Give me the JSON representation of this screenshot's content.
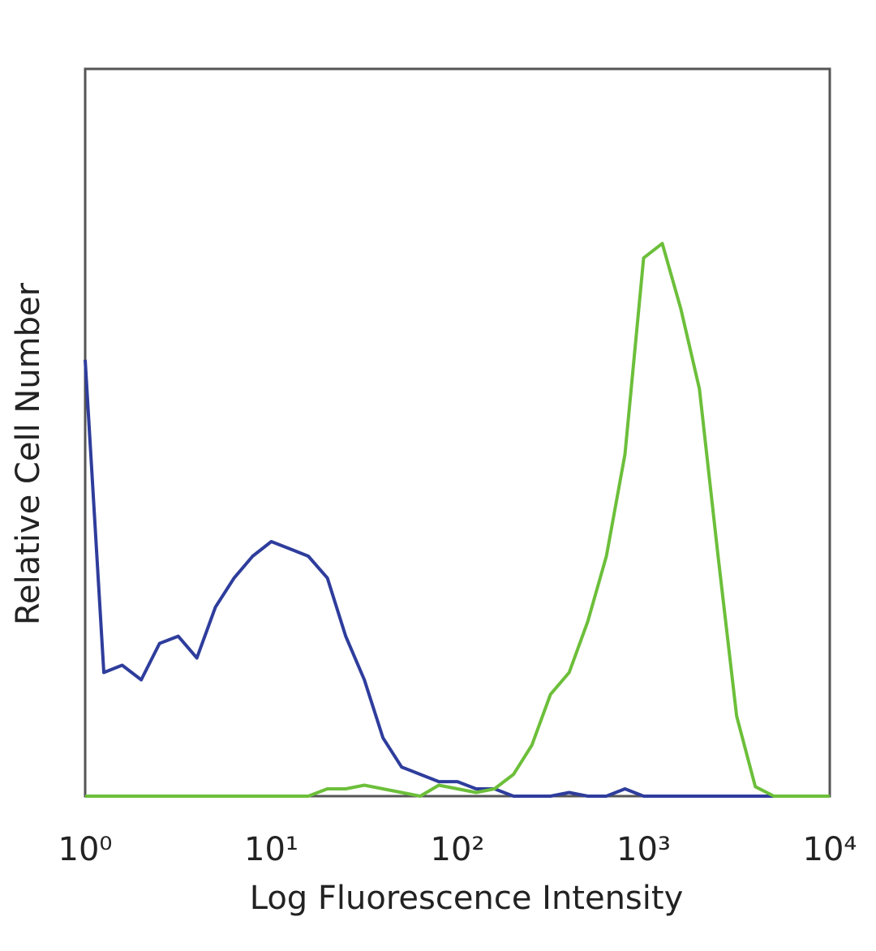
{
  "chart_data": {
    "type": "line",
    "x_label": "Log Fluorescence Intensity",
    "y_label": "Relative Cell Number",
    "x_scale": "log",
    "xlim": [
      1,
      10000
    ],
    "xticks": [
      {
        "value": 1,
        "label": "10⁰"
      },
      {
        "value": 10,
        "label": "10¹"
      },
      {
        "value": 100,
        "label": "10²"
      },
      {
        "value": 1000,
        "label": "10³"
      },
      {
        "value": 10000,
        "label": "10⁴"
      }
    ],
    "ylim": [
      0,
      100
    ],
    "grid": false,
    "x": [
      1,
      1.26,
      1.58,
      2.0,
      2.51,
      3.16,
      3.98,
      5.01,
      6.31,
      7.94,
      10,
      12.6,
      15.8,
      20.0,
      25.1,
      31.6,
      39.8,
      50.1,
      63.1,
      79.4,
      100,
      126,
      158,
      200,
      251,
      316,
      398,
      501,
      631,
      794,
      1000,
      1259,
      1585,
      1995,
      2512,
      3162,
      3981,
      5012,
      6310,
      7943,
      10000
    ],
    "series": [
      {
        "color": "#2e3d9c",
        "values": [
          60,
          17,
          18,
          16,
          21,
          22,
          19,
          26,
          30,
          33,
          35,
          34,
          33,
          30,
          22,
          16,
          8,
          4,
          3,
          2,
          2,
          1,
          1,
          0,
          0,
          0,
          0.5,
          0,
          0,
          1,
          0,
          0,
          0,
          0,
          0,
          0,
          0,
          0,
          0,
          0,
          0
        ]
      },
      {
        "color": "#6cbf3a",
        "values": [
          0,
          0,
          0,
          0,
          0,
          0,
          0,
          0,
          0,
          0,
          0,
          0,
          0,
          1,
          1,
          1.5,
          1,
          0.5,
          0,
          1.5,
          1,
          0.5,
          1,
          3,
          7,
          14,
          17,
          24,
          33,
          47,
          74,
          76,
          67,
          56,
          33,
          11,
          1.3,
          0,
          0,
          0,
          0
        ]
      }
    ]
  }
}
